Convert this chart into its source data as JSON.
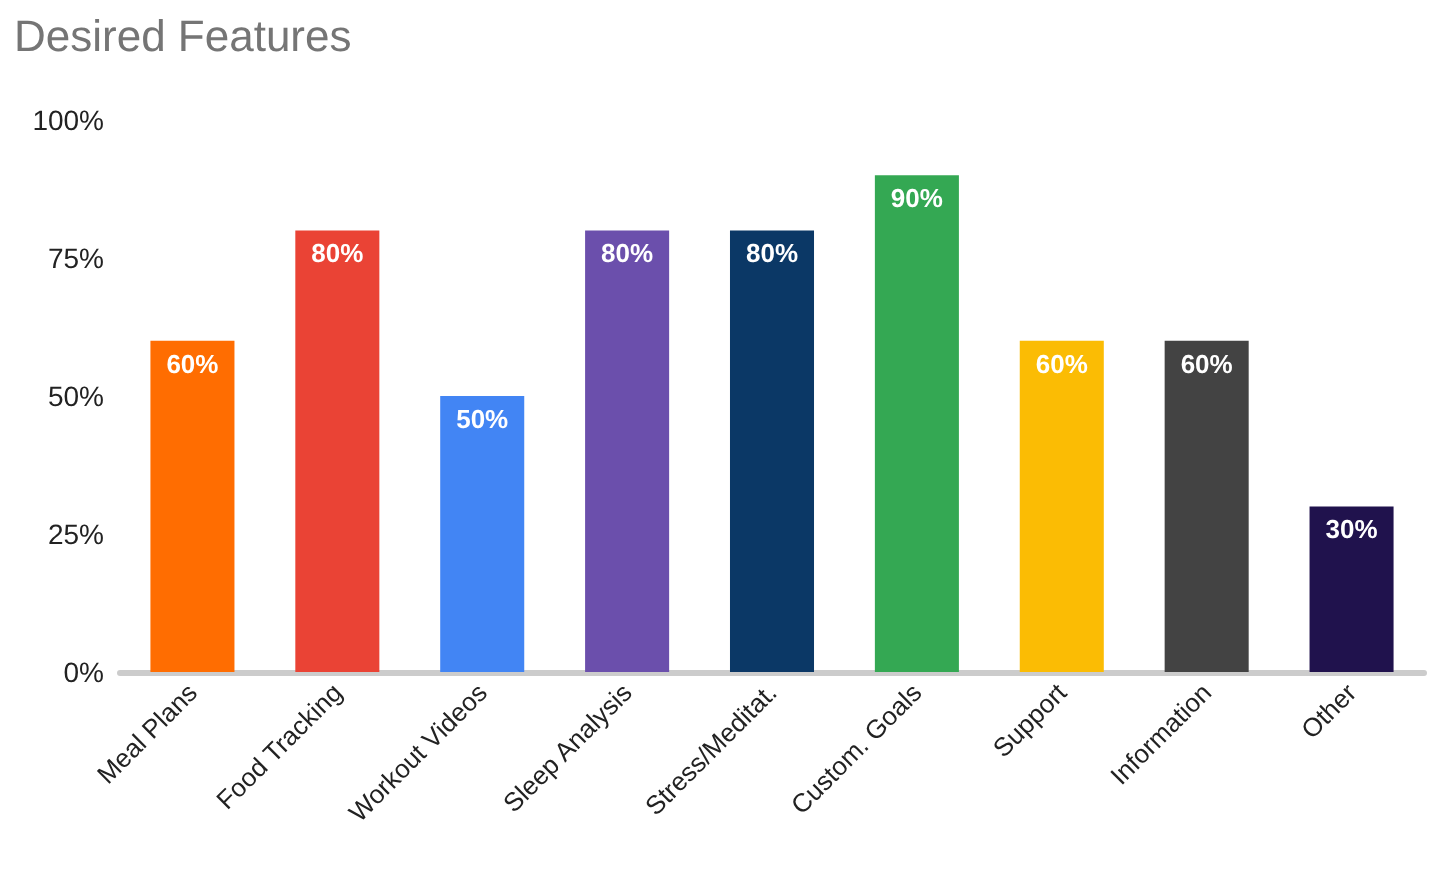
{
  "chart_data": {
    "type": "bar",
    "title": "Desired Features",
    "categories": [
      "Meal Plans",
      "Food Tracking",
      "Workout Videos",
      "Sleep Analysis",
      "Stress/Meditat.",
      "Custom. Goals",
      "Support",
      "Information",
      "Other"
    ],
    "values": [
      60,
      80,
      50,
      80,
      80,
      90,
      60,
      60,
      30
    ],
    "colors": [
      "#ff6d01",
      "#ea4335",
      "#4285f4",
      "#6b4fac",
      "#0b3866",
      "#34a853",
      "#fbbc04",
      "#434343",
      "#20124d"
    ],
    "value_labels": [
      "60%",
      "80%",
      "50%",
      "80%",
      "80%",
      "90%",
      "60%",
      "60%",
      "30%"
    ],
    "ylim": [
      0,
      100
    ],
    "yticks": [
      {
        "value": 0,
        "label": "0%"
      },
      {
        "value": 25,
        "label": "25%"
      },
      {
        "value": 50,
        "label": "50%"
      },
      {
        "value": 75,
        "label": "75%"
      },
      {
        "value": 100,
        "label": "100%"
      }
    ],
    "grid": false
  }
}
